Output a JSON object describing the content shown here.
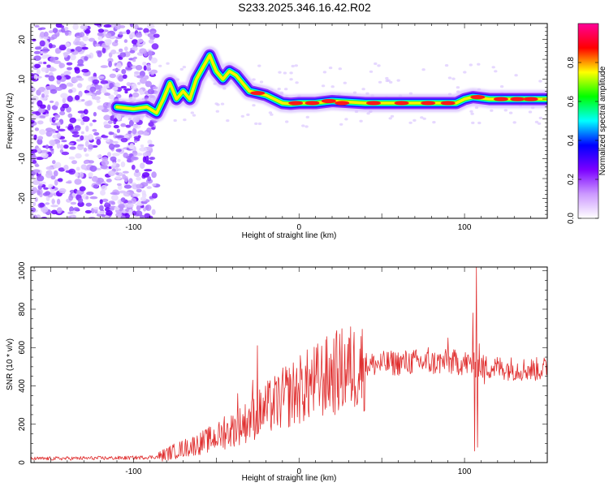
{
  "title": "S233.2025.346.16.42.R02",
  "chart_data": [
    {
      "type": "heatmap",
      "xlabel": "Height of straight line (km)",
      "ylabel": "Frequency (Hz)",
      "xlim": [
        -162,
        150
      ],
      "ylim": [
        -25,
        24
      ],
      "xticks": [
        -100,
        0,
        100
      ],
      "yticks": [
        -20,
        -10,
        0,
        10,
        20
      ],
      "noise_region_x": [
        -162,
        -92
      ],
      "ridge": [
        [
          -110,
          3
        ],
        [
          -100,
          2.5
        ],
        [
          -92,
          3
        ],
        [
          -86,
          1.5
        ],
        [
          -82,
          5
        ],
        [
          -78,
          9
        ],
        [
          -74,
          5
        ],
        [
          -70,
          7
        ],
        [
          -66,
          5
        ],
        [
          -62,
          10
        ],
        [
          -58,
          13
        ],
        [
          -54,
          16
        ],
        [
          -50,
          12
        ],
        [
          -46,
          10
        ],
        [
          -42,
          12
        ],
        [
          -38,
          11
        ],
        [
          -34,
          9
        ],
        [
          -30,
          7
        ],
        [
          -25,
          6.5
        ],
        [
          -20,
          6
        ],
        [
          -15,
          5
        ],
        [
          -10,
          4
        ],
        [
          -5,
          3.8
        ],
        [
          0,
          4
        ],
        [
          10,
          4
        ],
        [
          20,
          4.5
        ],
        [
          40,
          4
        ],
        [
          60,
          4
        ],
        [
          80,
          4
        ],
        [
          95,
          4
        ],
        [
          100,
          5
        ],
        [
          105,
          5.5
        ],
        [
          115,
          5
        ],
        [
          130,
          5
        ],
        [
          150,
          5
        ]
      ],
      "hot_spots": [
        [
          -25,
          6.5
        ],
        [
          -2,
          4
        ],
        [
          8,
          4
        ],
        [
          18,
          4.5
        ],
        [
          26,
          4
        ],
        [
          45,
          4
        ],
        [
          62,
          4
        ],
        [
          78,
          4
        ],
        [
          90,
          4
        ],
        [
          108,
          5.5
        ],
        [
          122,
          5
        ],
        [
          132,
          5
        ],
        [
          140,
          5
        ]
      ],
      "colorbar": {
        "label": "Normalized spectral amplitude",
        "range": [
          0.0,
          1.0
        ],
        "ticks": [
          "0.0",
          "0.2",
          "0.4",
          "0.6",
          "0.8"
        ],
        "colors": [
          "#ffffff",
          "#cc99ff",
          "#7b00ff",
          "#0000ff",
          "#00ffff",
          "#00ff00",
          "#ffff00",
          "#ff0000",
          "#ff0099"
        ]
      }
    },
    {
      "type": "line",
      "xlabel": "Height of straight line (km)",
      "ylabel": "SNR (10 * v/v)",
      "xlim": [
        -162,
        150
      ],
      "ylim": [
        0,
        1020
      ],
      "xticks": [
        -100,
        0,
        100
      ],
      "yticks": [
        0,
        200,
        400,
        600,
        800,
        1000
      ],
      "color": "#e03030",
      "trend": [
        [
          -162,
          20
        ],
        [
          -100,
          25
        ],
        [
          -85,
          30
        ],
        [
          -75,
          60
        ],
        [
          -60,
          100
        ],
        [
          -45,
          150
        ],
        [
          -30,
          220
        ],
        [
          -20,
          280
        ],
        [
          -10,
          330
        ],
        [
          0,
          380
        ],
        [
          10,
          420
        ],
        [
          20,
          460
        ],
        [
          30,
          490
        ],
        [
          40,
          510
        ],
        [
          50,
          515
        ],
        [
          60,
          520
        ],
        [
          70,
          525
        ],
        [
          80,
          520
        ],
        [
          90,
          525
        ],
        [
          100,
          520
        ],
        [
          110,
          500
        ],
        [
          120,
          495
        ],
        [
          130,
          490
        ],
        [
          140,
          485
        ],
        [
          150,
          490
        ]
      ],
      "spikes": [
        [
          -25,
          610
        ],
        [
          -28,
          430
        ],
        [
          -30,
          280
        ],
        [
          -37,
          360
        ],
        [
          -45,
          240
        ],
        [
          -8,
          500
        ],
        [
          10,
          450
        ],
        [
          55,
          540
        ],
        [
          78,
          600
        ],
        [
          90,
          650
        ],
        [
          105,
          780
        ],
        [
          106,
          60
        ],
        [
          107,
          1020
        ],
        [
          108,
          80
        ],
        [
          109,
          620
        ],
        [
          112,
          410
        ]
      ]
    }
  ]
}
